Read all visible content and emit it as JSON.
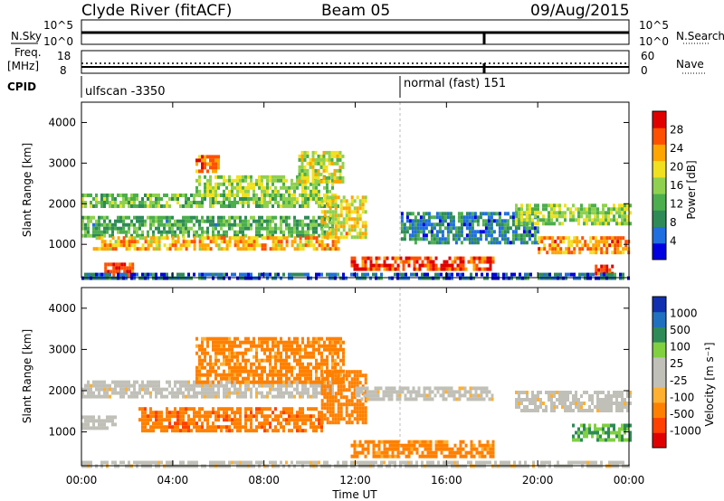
{
  "header": {
    "station": "Clyde River (fitACF)",
    "beam": "Beam 05",
    "date": "09/Aug/2015"
  },
  "top_strip": {
    "left_label": "N.Sky",
    "left_ticks": [
      "10^5",
      "10^0"
    ],
    "right_label": "N.Search",
    "right_ticks": [
      "10^5",
      "10^0"
    ]
  },
  "freq_strip": {
    "left_label_line1": "Freq.",
    "left_label_line2": "[MHz]",
    "left_ticks": [
      "18",
      "8"
    ],
    "right_label": "Nave",
    "right_ticks": [
      "60",
      "0"
    ]
  },
  "cpid": {
    "label": "CPID",
    "program_1": "ulfscan -3350",
    "program_2": "normal (fast) 151"
  },
  "time_axis": {
    "ticks": [
      "00:00",
      "04:00",
      "08:00",
      "12:00",
      "16:00",
      "20:00",
      "00:00"
    ],
    "label": "Time UT"
  },
  "colors": {
    "power_scale": [
      "#0000e0",
      "#1f6fe0",
      "#2e8b57",
      "#4cae4c",
      "#8fd14f",
      "#f0e020",
      "#ffa500",
      "#ff5000",
      "#e00000"
    ],
    "velocity_scale": [
      "#e00000",
      "#ff4000",
      "#ff8000",
      "#ffb030",
      "#c0c0b8",
      "#c0c0b8",
      "#80d040",
      "#2e8b57",
      "#2070c0",
      "#1030b0"
    ]
  },
  "chart_data": [
    {
      "type": "heatmap",
      "title": "Power",
      "xlabel": "",
      "ylabel": "Slant Range [km]",
      "ylim": [
        180,
        4500
      ],
      "yticks": [
        "1000",
        "2000",
        "3000",
        "4000"
      ],
      "colorbar": {
        "label": "Power [dB]",
        "ticks": [
          "28",
          "24",
          "20",
          "16",
          "12",
          "8",
          "4"
        ],
        "range": [
          0,
          32
        ]
      },
      "x_range_hours": [
        0,
        24
      ],
      "bands": [
        {
          "t0": 0.0,
          "t1": 11.2,
          "r0": 1900,
          "r1": 2250,
          "value": 14
        },
        {
          "t0": 0.0,
          "t1": 11.0,
          "r0": 1250,
          "r1": 1700,
          "value": 12
        },
        {
          "t0": 0.5,
          "t1": 11.3,
          "r0": 900,
          "r1": 1200,
          "value": 22
        },
        {
          "t0": 5.0,
          "t1": 11.0,
          "r0": 2200,
          "r1": 2700,
          "value": 16
        },
        {
          "t0": 5.0,
          "t1": 6.0,
          "r0": 2800,
          "r1": 3200,
          "value": 24
        },
        {
          "t0": 9.5,
          "t1": 11.5,
          "r0": 2500,
          "r1": 3300,
          "value": 18
        },
        {
          "t0": 10.5,
          "t1": 12.5,
          "r0": 1200,
          "r1": 2200,
          "value": 20
        },
        {
          "t0": 11.8,
          "t1": 18.0,
          "r0": 400,
          "r1": 700,
          "value": 28
        },
        {
          "t0": 1.0,
          "t1": 2.3,
          "r0": 250,
          "r1": 550,
          "value": 28
        },
        {
          "t0": 14.0,
          "t1": 20.0,
          "r0": 1000,
          "r1": 1800,
          "value": 8
        },
        {
          "t0": 19.0,
          "t1": 24.0,
          "r0": 1500,
          "r1": 2000,
          "value": 16
        },
        {
          "t0": 20.0,
          "t1": 24.0,
          "r0": 800,
          "r1": 1200,
          "value": 24
        },
        {
          "t0": 22.5,
          "t1": 23.3,
          "r0": 250,
          "r1": 500,
          "value": 28
        },
        {
          "t0": 0.0,
          "t1": 24.0,
          "r0": 200,
          "r1": 300,
          "value": 6
        }
      ]
    },
    {
      "type": "heatmap",
      "title": "Velocity",
      "xlabel": "Time UT",
      "ylabel": "Slant Range [km]",
      "ylim": [
        180,
        4500
      ],
      "yticks": [
        "1000",
        "2000",
        "3000",
        "4000"
      ],
      "colorbar": {
        "label": "Velocity [m s⁻¹]",
        "ticks": [
          "1000",
          "500",
          "100",
          "25",
          "-25",
          "-100",
          "-500",
          "-1000"
        ]
      },
      "x_range_hours": [
        0,
        24
      ],
      "bands": [
        {
          "t0": 0.0,
          "t1": 11.0,
          "r0": 1850,
          "r1": 2250,
          "value": 0
        },
        {
          "t0": 2.5,
          "t1": 10.5,
          "r0": 1000,
          "r1": 1600,
          "value": -400
        },
        {
          "t0": 5.0,
          "t1": 11.5,
          "r0": 2200,
          "r1": 3300,
          "value": -150
        },
        {
          "t0": 10.5,
          "t1": 12.5,
          "r0": 1200,
          "r1": 2500,
          "value": -300
        },
        {
          "t0": 11.8,
          "t1": 18.0,
          "r0": 400,
          "r1": 800,
          "value": -150
        },
        {
          "t0": 12.0,
          "t1": 18.0,
          "r0": 1800,
          "r1": 2100,
          "value": 0
        },
        {
          "t0": 19.0,
          "t1": 24.0,
          "r0": 1500,
          "r1": 2000,
          "value": 0
        },
        {
          "t0": 21.5,
          "t1": 24.0,
          "r0": 800,
          "r1": 1200,
          "value": 500
        },
        {
          "t0": 0.0,
          "t1": 1.5,
          "r0": 1100,
          "r1": 1400,
          "value": 50
        },
        {
          "t0": 0.0,
          "t1": 24.0,
          "r0": 200,
          "r1": 300,
          "value": 0
        }
      ]
    }
  ]
}
